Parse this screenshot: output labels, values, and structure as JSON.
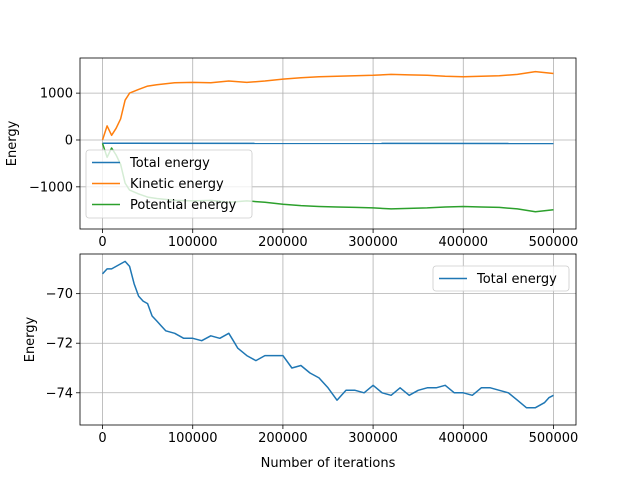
{
  "chart_data": [
    {
      "type": "line",
      "title": "",
      "xlabel": "",
      "ylabel": "Energy",
      "xlim": [
        -25000,
        525000
      ],
      "ylim": [
        -1900,
        1750
      ],
      "xticks": [
        0,
        100000,
        200000,
        300000,
        400000,
        500000
      ],
      "xtick_labels": [
        "0",
        "100000",
        "200000",
        "300000",
        "400000",
        "500000"
      ],
      "yticks": [
        -1000,
        0,
        1000
      ],
      "ytick_labels": [
        "−1000",
        "0",
        "1000"
      ],
      "grid": true,
      "legend_position": "lower-left",
      "series": [
        {
          "name": "Total energy",
          "color": "#1f77b4",
          "x": [
            0,
            500000
          ],
          "y": [
            -70,
            -74
          ]
        },
        {
          "name": "Kinetic energy",
          "color": "#ff7f0e",
          "x": [
            0,
            5000,
            10000,
            15000,
            20000,
            25000,
            30000,
            40000,
            50000,
            60000,
            80000,
            100000,
            120000,
            140000,
            160000,
            180000,
            200000,
            220000,
            240000,
            260000,
            280000,
            300000,
            320000,
            340000,
            360000,
            380000,
            400000,
            420000,
            440000,
            460000,
            480000,
            500000
          ],
          "y": [
            0,
            300,
            100,
            250,
            450,
            850,
            1000,
            1080,
            1150,
            1180,
            1220,
            1230,
            1220,
            1260,
            1230,
            1260,
            1300,
            1330,
            1350,
            1360,
            1370,
            1380,
            1400,
            1390,
            1380,
            1360,
            1350,
            1360,
            1370,
            1400,
            1460,
            1420
          ]
        },
        {
          "name": "Potential energy",
          "color": "#2ca02c",
          "x": [
            0,
            5000,
            10000,
            15000,
            20000,
            25000,
            30000,
            40000,
            50000,
            60000,
            80000,
            100000,
            120000,
            140000,
            160000,
            180000,
            200000,
            220000,
            240000,
            260000,
            280000,
            300000,
            320000,
            340000,
            360000,
            380000,
            400000,
            420000,
            440000,
            460000,
            480000,
            500000
          ],
          "y": [
            -70,
            -370,
            -170,
            -320,
            -520,
            -920,
            -1070,
            -1150,
            -1220,
            -1250,
            -1290,
            -1300,
            -1290,
            -1330,
            -1300,
            -1330,
            -1370,
            -1400,
            -1420,
            -1430,
            -1440,
            -1450,
            -1470,
            -1460,
            -1450,
            -1430,
            -1420,
            -1430,
            -1440,
            -1470,
            -1530,
            -1490
          ]
        }
      ]
    },
    {
      "type": "line",
      "title": "",
      "xlabel": "Number of iterations",
      "ylabel": "Energy",
      "xlim": [
        -25000,
        525000
      ],
      "ylim": [
        -75.3,
        -68.4
      ],
      "xticks": [
        0,
        100000,
        200000,
        300000,
        400000,
        500000
      ],
      "xtick_labels": [
        "0",
        "100000",
        "200000",
        "300000",
        "400000",
        "500000"
      ],
      "yticks": [
        -74,
        -72,
        -70
      ],
      "ytick_labels": [
        "−74",
        "−72",
        "−70"
      ],
      "grid": true,
      "legend_position": "top-right",
      "series": [
        {
          "name": "Total energy",
          "color": "#1f77b4",
          "x": [
            0,
            5000,
            10000,
            15000,
            20000,
            25000,
            30000,
            35000,
            40000,
            45000,
            50000,
            55000,
            60000,
            65000,
            70000,
            80000,
            90000,
            100000,
            110000,
            120000,
            130000,
            140000,
            145000,
            150000,
            160000,
            170000,
            180000,
            190000,
            200000,
            210000,
            220000,
            230000,
            240000,
            250000,
            260000,
            270000,
            280000,
            290000,
            300000,
            310000,
            320000,
            330000,
            340000,
            350000,
            360000,
            370000,
            380000,
            390000,
            400000,
            410000,
            420000,
            430000,
            440000,
            450000,
            460000,
            470000,
            480000,
            490000,
            495000,
            500000
          ],
          "y": [
            -69.2,
            -69.0,
            -69.0,
            -68.9,
            -68.8,
            -68.7,
            -68.9,
            -69.6,
            -70.1,
            -70.3,
            -70.4,
            -70.9,
            -71.1,
            -71.3,
            -71.5,
            -71.6,
            -71.8,
            -71.8,
            -71.9,
            -71.7,
            -71.8,
            -71.6,
            -71.9,
            -72.2,
            -72.5,
            -72.7,
            -72.5,
            -72.5,
            -72.5,
            -73.0,
            -72.9,
            -73.2,
            -73.4,
            -73.8,
            -74.3,
            -73.9,
            -73.9,
            -74.0,
            -73.7,
            -74.0,
            -74.1,
            -73.8,
            -74.1,
            -73.9,
            -73.8,
            -73.8,
            -73.7,
            -74.0,
            -74.0,
            -74.1,
            -73.8,
            -73.8,
            -73.9,
            -74.0,
            -74.3,
            -74.6,
            -74.6,
            -74.4,
            -74.2,
            -74.1
          ]
        }
      ]
    }
  ]
}
